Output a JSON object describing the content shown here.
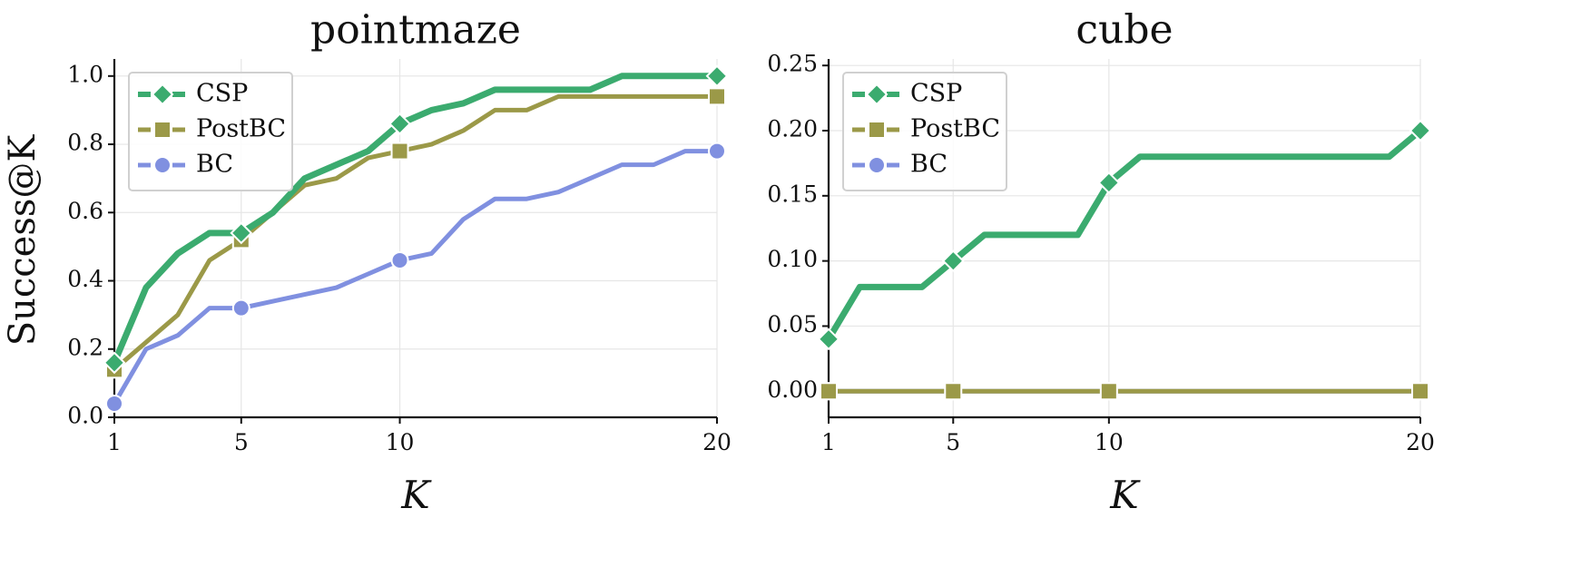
{
  "y_axis_label": "Success@K",
  "chart_data": [
    {
      "type": "line",
      "title": "pointmaze",
      "xlabel": "K",
      "ylabel": "Success@K",
      "xlim": [
        1,
        20
      ],
      "ylim": [
        0,
        1.05
      ],
      "xticks": [
        1,
        5,
        10,
        20
      ],
      "yticks": [
        0.0,
        0.2,
        0.4,
        0.6,
        0.8,
        1.0
      ],
      "ytick_labels": [
        "0.0",
        "0.2",
        "0.4",
        "0.6",
        "0.8",
        "1.0"
      ],
      "grid": true,
      "legend_position": "top-left",
      "x": [
        1,
        2,
        3,
        4,
        5,
        6,
        7,
        8,
        9,
        10,
        11,
        12,
        13,
        14,
        15,
        16,
        17,
        18,
        19,
        20
      ],
      "series": [
        {
          "name": "CSP",
          "color": "#3bab6f",
          "marker": "diamond",
          "values": [
            0.16,
            0.38,
            0.48,
            0.54,
            0.54,
            0.6,
            0.7,
            0.74,
            0.78,
            0.86,
            0.9,
            0.92,
            0.96,
            0.96,
            0.96,
            0.96,
            1.0,
            1.0,
            1.0,
            1.0
          ],
          "marker_x": [
            1,
            5,
            10,
            20
          ]
        },
        {
          "name": "PostBC",
          "color": "#9b9948",
          "marker": "square",
          "values": [
            0.14,
            0.22,
            0.3,
            0.46,
            0.52,
            0.6,
            0.68,
            0.7,
            0.76,
            0.78,
            0.8,
            0.84,
            0.9,
            0.9,
            0.94,
            0.94,
            0.94,
            0.94,
            0.94,
            0.94
          ],
          "marker_x": [
            1,
            5,
            10,
            20
          ]
        },
        {
          "name": "BC",
          "color": "#8090e0",
          "marker": "circle",
          "values": [
            0.04,
            0.2,
            0.24,
            0.32,
            0.32,
            0.34,
            0.36,
            0.38,
            0.42,
            0.46,
            0.48,
            0.58,
            0.64,
            0.64,
            0.66,
            0.7,
            0.74,
            0.74,
            0.78,
            0.78
          ],
          "marker_x": [
            1,
            5,
            10,
            20
          ]
        }
      ]
    },
    {
      "type": "line",
      "title": "cube",
      "xlabel": "K",
      "ylabel": "",
      "xlim": [
        1,
        20
      ],
      "ylim": [
        -0.02,
        0.255
      ],
      "xticks": [
        1,
        5,
        10,
        20
      ],
      "yticks": [
        0.0,
        0.05,
        0.1,
        0.15,
        0.2,
        0.25
      ],
      "ytick_labels": [
        "0.00",
        "0.05",
        "0.10",
        "0.15",
        "0.20",
        "0.25"
      ],
      "grid": true,
      "legend_position": "top-left",
      "x": [
        1,
        2,
        3,
        4,
        5,
        6,
        7,
        8,
        9,
        10,
        11,
        12,
        13,
        14,
        15,
        16,
        17,
        18,
        19,
        20
      ],
      "series": [
        {
          "name": "CSP",
          "color": "#3bab6f",
          "marker": "diamond",
          "values": [
            0.04,
            0.08,
            0.08,
            0.08,
            0.1,
            0.12,
            0.12,
            0.12,
            0.12,
            0.16,
            0.18,
            0.18,
            0.18,
            0.18,
            0.18,
            0.18,
            0.18,
            0.18,
            0.18,
            0.2
          ],
          "marker_x": [
            1,
            5,
            10,
            20
          ]
        },
        {
          "name": "PostBC",
          "color": "#9b9948",
          "marker": "square",
          "values": [
            0,
            0,
            0,
            0,
            0,
            0,
            0,
            0,
            0,
            0,
            0,
            0,
            0,
            0,
            0,
            0,
            0,
            0,
            0,
            0
          ],
          "marker_x": [
            1,
            5,
            10,
            20
          ]
        },
        {
          "name": "BC",
          "color": "#8090e0",
          "marker": "circle",
          "values": [
            0,
            0,
            0,
            0,
            0,
            0,
            0,
            0,
            0,
            0,
            0,
            0,
            0,
            0,
            0,
            0,
            0,
            0,
            0,
            0
          ],
          "marker_x": [
            1,
            5,
            10,
            20
          ]
        }
      ]
    }
  ]
}
